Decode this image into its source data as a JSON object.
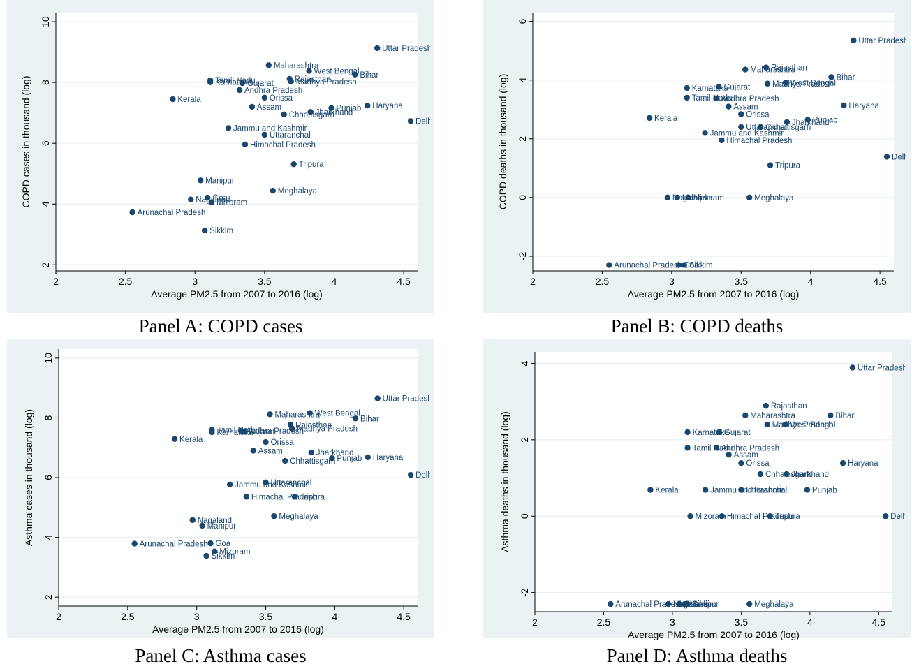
{
  "panels": [
    {
      "caption": "Panel A: COPD cases"
    },
    {
      "caption": "Panel B: COPD deaths"
    },
    {
      "caption": "Panel C: Asthma cases"
    },
    {
      "caption": "Panel D: Asthma deaths"
    }
  ],
  "colors": {
    "background": "#eaf2f3",
    "marker": "#1a476f",
    "label": "#1a476f",
    "grid": "#ffffff"
  },
  "chart_data": [
    {
      "type": "scatter",
      "title": "",
      "xlabel": "Average PM2.5 from 2007 to 2016 (log)",
      "ylabel": "COPD cases in thousand (log)",
      "xlim": [
        2,
        4.6
      ],
      "ylim": [
        1.8,
        10.3
      ],
      "xticks": [
        "2",
        "2.5",
        "3",
        "3.5",
        "4",
        "4.5"
      ],
      "yticks": [
        "2",
        "4",
        "6",
        "8",
        "10"
      ],
      "grid": "horizontal",
      "points": [
        {
          "label": "Uttar Pradesh",
          "x": 4.31,
          "y": 9.13
        },
        {
          "label": "Maharashtra",
          "x": 3.53,
          "y": 8.57
        },
        {
          "label": "West Bengal",
          "x": 3.82,
          "y": 8.38
        },
        {
          "label": "Bihar",
          "x": 4.15,
          "y": 8.26
        },
        {
          "label": "Rajasthan",
          "x": 3.68,
          "y": 8.12
        },
        {
          "label": "Madhya Pradesh",
          "x": 3.69,
          "y": 8.03
        },
        {
          "label": "Tamil Nadu",
          "x": 3.11,
          "y": 8.07
        },
        {
          "label": "Karnataka",
          "x": 3.11,
          "y": 8.01
        },
        {
          "label": "Gujarat",
          "x": 3.34,
          "y": 7.98
        },
        {
          "label": "Andhra Pradesh",
          "x": 3.32,
          "y": 7.75
        },
        {
          "label": "Kerala",
          "x": 2.84,
          "y": 7.45
        },
        {
          "label": "Orissa",
          "x": 3.5,
          "y": 7.5
        },
        {
          "label": "Assam",
          "x": 3.41,
          "y": 7.2
        },
        {
          "label": "Punjab",
          "x": 3.98,
          "y": 7.16
        },
        {
          "label": "Haryana",
          "x": 4.24,
          "y": 7.24
        },
        {
          "label": "Jharkhand",
          "x": 3.83,
          "y": 7.03
        },
        {
          "label": "Chhattisgarh",
          "x": 3.64,
          "y": 6.95
        },
        {
          "label": "Delhi",
          "x": 4.55,
          "y": 6.73
        },
        {
          "label": "Jammu and Kashmir",
          "x": 3.24,
          "y": 6.5
        },
        {
          "label": "Uttaranchal",
          "x": 3.5,
          "y": 6.28
        },
        {
          "label": "Himachal Pradesh",
          "x": 3.36,
          "y": 5.96
        },
        {
          "label": "Tripura",
          "x": 3.71,
          "y": 5.31
        },
        {
          "label": "Manipur",
          "x": 3.04,
          "y": 4.78
        },
        {
          "label": "Meghalaya",
          "x": 3.56,
          "y": 4.44
        },
        {
          "label": "Goa",
          "x": 3.09,
          "y": 4.21
        },
        {
          "label": "Nagaland",
          "x": 2.97,
          "y": 4.15
        },
        {
          "label": "Mizoram",
          "x": 3.12,
          "y": 4.06
        },
        {
          "label": "Arunachal Pradesh",
          "x": 2.55,
          "y": 3.73
        },
        {
          "label": "Sikkim",
          "x": 3.07,
          "y": 3.13
        }
      ]
    },
    {
      "type": "scatter",
      "title": "",
      "xlabel": "Average PM2.5 from 2007 to 2016 (log)",
      "ylabel": "COPD deaths in thousand (log)",
      "xlim": [
        2,
        4.6
      ],
      "ylim": [
        -2.5,
        6.3
      ],
      "xticks": [
        "2",
        "2.5",
        "3",
        "3.5",
        "4",
        "4.5"
      ],
      "yticks": [
        "-2",
        "0",
        "2",
        "4",
        "6"
      ],
      "grid": "horizontal",
      "points": [
        {
          "label": "Uttar Pradesh",
          "x": 4.31,
          "y": 5.35
        },
        {
          "label": "Rajasthan",
          "x": 3.68,
          "y": 4.43
        },
        {
          "label": "Maharashtra",
          "x": 3.53,
          "y": 4.36
        },
        {
          "label": "Bihar",
          "x": 4.15,
          "y": 4.1
        },
        {
          "label": "Madhya Pradesh",
          "x": 3.69,
          "y": 3.88
        },
        {
          "label": "West Bengal",
          "x": 3.82,
          "y": 3.91
        },
        {
          "label": "Karnataka",
          "x": 3.11,
          "y": 3.73
        },
        {
          "label": "Gujarat",
          "x": 3.34,
          "y": 3.77
        },
        {
          "label": "Tamil Nadu",
          "x": 3.11,
          "y": 3.4
        },
        {
          "label": "Andhra Pradesh",
          "x": 3.32,
          "y": 3.38
        },
        {
          "label": "Assam",
          "x": 3.41,
          "y": 3.1
        },
        {
          "label": "Haryana",
          "x": 4.24,
          "y": 3.14
        },
        {
          "label": "Orissa",
          "x": 3.5,
          "y": 2.84
        },
        {
          "label": "Kerala",
          "x": 2.84,
          "y": 2.71
        },
        {
          "label": "Punjab",
          "x": 3.98,
          "y": 2.65
        },
        {
          "label": "Jharkhand",
          "x": 3.83,
          "y": 2.57
        },
        {
          "label": "Uttaranchal",
          "x": 3.5,
          "y": 2.4
        },
        {
          "label": "Chhattisgarh",
          "x": 3.64,
          "y": 2.4
        },
        {
          "label": "Jammu and Kashmir",
          "x": 3.24,
          "y": 2.2
        },
        {
          "label": "Himachal Pradesh",
          "x": 3.36,
          "y": 1.95
        },
        {
          "label": "Delhi",
          "x": 4.55,
          "y": 1.39
        },
        {
          "label": "Tripura",
          "x": 3.71,
          "y": 1.1
        },
        {
          "label": "Nagaland",
          "x": 2.97,
          "y": 0.0
        },
        {
          "label": "Manipur",
          "x": 3.04,
          "y": 0.0
        },
        {
          "label": "Mizoram",
          "x": 3.12,
          "y": 0.0
        },
        {
          "label": "Meghalaya",
          "x": 3.56,
          "y": 0.0
        },
        {
          "label": "Arunachal Pradesh",
          "x": 2.55,
          "y": -2.3
        },
        {
          "label": "Goa",
          "x": 3.05,
          "y": -2.3
        },
        {
          "label": "Sikkim",
          "x": 3.09,
          "y": -2.3
        }
      ]
    },
    {
      "type": "scatter",
      "title": "",
      "xlabel": "Average PM2.5 from 2007 to 2016 (log)",
      "ylabel": "Asthma cases in thousand (log)",
      "xlim": [
        2,
        4.6
      ],
      "ylim": [
        1.7,
        10.3
      ],
      "xticks": [
        "2",
        "2.5",
        "3",
        "3.5",
        "4",
        "4.5"
      ],
      "yticks": [
        "2",
        "4",
        "6",
        "8",
        "10"
      ],
      "grid": "horizontal",
      "points": [
        {
          "label": "Uttar Pradesh",
          "x": 4.31,
          "y": 8.65
        },
        {
          "label": "Maharashtra",
          "x": 3.53,
          "y": 8.12
        },
        {
          "label": "West Bengal",
          "x": 3.82,
          "y": 8.16
        },
        {
          "label": "Bihar",
          "x": 4.15,
          "y": 7.98
        },
        {
          "label": "Rajasthan",
          "x": 3.68,
          "y": 7.77
        },
        {
          "label": "Madhya Pradesh",
          "x": 3.69,
          "y": 7.65
        },
        {
          "label": "Tamil Nadu",
          "x": 3.11,
          "y": 7.6
        },
        {
          "label": "Karnataka",
          "x": 3.11,
          "y": 7.52
        },
        {
          "label": "Andhra Pradesh",
          "x": 3.32,
          "y": 7.57
        },
        {
          "label": "Gujarat",
          "x": 3.34,
          "y": 7.54
        },
        {
          "label": "Kerala",
          "x": 2.84,
          "y": 7.29
        },
        {
          "label": "Orissa",
          "x": 3.5,
          "y": 7.19
        },
        {
          "label": "Assam",
          "x": 3.41,
          "y": 6.9
        },
        {
          "label": "Jharkhand",
          "x": 3.83,
          "y": 6.84
        },
        {
          "label": "Punjab",
          "x": 3.98,
          "y": 6.65
        },
        {
          "label": "Haryana",
          "x": 4.24,
          "y": 6.68
        },
        {
          "label": "Chhattisgarh",
          "x": 3.64,
          "y": 6.56
        },
        {
          "label": "Delhi",
          "x": 4.55,
          "y": 6.09
        },
        {
          "label": "Uttaranchal",
          "x": 3.5,
          "y": 5.84
        },
        {
          "label": "Jammu and Kashmir",
          "x": 3.24,
          "y": 5.77
        },
        {
          "label": "Himachal Pradesh",
          "x": 3.36,
          "y": 5.36
        },
        {
          "label": "Tripura",
          "x": 3.71,
          "y": 5.36
        },
        {
          "label": "Meghalaya",
          "x": 3.56,
          "y": 4.71
        },
        {
          "label": "Nagaland",
          "x": 2.97,
          "y": 4.58
        },
        {
          "label": "Manipur",
          "x": 3.04,
          "y": 4.39
        },
        {
          "label": "Arunachal Pradesh",
          "x": 2.55,
          "y": 3.79
        },
        {
          "label": "Goa",
          "x": 3.1,
          "y": 3.8
        },
        {
          "label": "Mizoram",
          "x": 3.13,
          "y": 3.53
        },
        {
          "label": "Sikkim",
          "x": 3.07,
          "y": 3.38
        }
      ]
    },
    {
      "type": "scatter",
      "title": "",
      "xlabel": "Average PM2.5 from 2007 to 2016 (log)",
      "ylabel": "Asthma deaths in thousand (log)",
      "xlim": [
        2,
        4.6
      ],
      "ylim": [
        -2.5,
        4.3
      ],
      "xticks": [
        "2",
        "2.5",
        "3",
        "3.5",
        "4",
        "4.5"
      ],
      "yticks": [
        "-2",
        "0",
        "2",
        "4"
      ],
      "grid": "horizontal",
      "points": [
        {
          "label": "Uttar Pradesh",
          "x": 4.31,
          "y": 3.89
        },
        {
          "label": "Rajasthan",
          "x": 3.68,
          "y": 2.89
        },
        {
          "label": "Maharashtra",
          "x": 3.53,
          "y": 2.64
        },
        {
          "label": "Bihar",
          "x": 4.15,
          "y": 2.64
        },
        {
          "label": "Madhya Pradesh",
          "x": 3.69,
          "y": 2.4
        },
        {
          "label": "West Bengal",
          "x": 3.82,
          "y": 2.4
        },
        {
          "label": "Karnataka",
          "x": 3.11,
          "y": 2.2
        },
        {
          "label": "Gujarat",
          "x": 3.34,
          "y": 2.2
        },
        {
          "label": "Tamil Nadu",
          "x": 3.11,
          "y": 1.79
        },
        {
          "label": "Andhra Pradesh",
          "x": 3.32,
          "y": 1.79
        },
        {
          "label": "Assam",
          "x": 3.41,
          "y": 1.61
        },
        {
          "label": "Orissa",
          "x": 3.5,
          "y": 1.39
        },
        {
          "label": "Haryana",
          "x": 4.24,
          "y": 1.39
        },
        {
          "label": "Chhattisgarh",
          "x": 3.64,
          "y": 1.1
        },
        {
          "label": "Jharkhand",
          "x": 3.83,
          "y": 1.1
        },
        {
          "label": "Kerala",
          "x": 2.84,
          "y": 0.69
        },
        {
          "label": "Jammu and Kashmir",
          "x": 3.24,
          "y": 0.69
        },
        {
          "label": "Uttaranchal",
          "x": 3.5,
          "y": 0.69
        },
        {
          "label": "Punjab",
          "x": 3.98,
          "y": 0.69
        },
        {
          "label": "Mizoram",
          "x": 3.13,
          "y": 0.0
        },
        {
          "label": "Himachal Pradesh",
          "x": 3.36,
          "y": 0.0
        },
        {
          "label": "Tripura",
          "x": 3.71,
          "y": 0.0
        },
        {
          "label": "Delhi",
          "x": 4.55,
          "y": 0.0
        },
        {
          "label": "Arunachal Pradesh",
          "x": 2.55,
          "y": -2.3
        },
        {
          "label": "Nagaland",
          "x": 2.97,
          "y": -2.3
        },
        {
          "label": "Goa",
          "x": 3.05,
          "y": -2.3
        },
        {
          "label": "Manipur",
          "x": 3.09,
          "y": -2.3
        },
        {
          "label": "Sikkim",
          "x": 3.11,
          "y": -2.3
        },
        {
          "label": "Meghalaya",
          "x": 3.56,
          "y": -2.3
        }
      ]
    }
  ]
}
